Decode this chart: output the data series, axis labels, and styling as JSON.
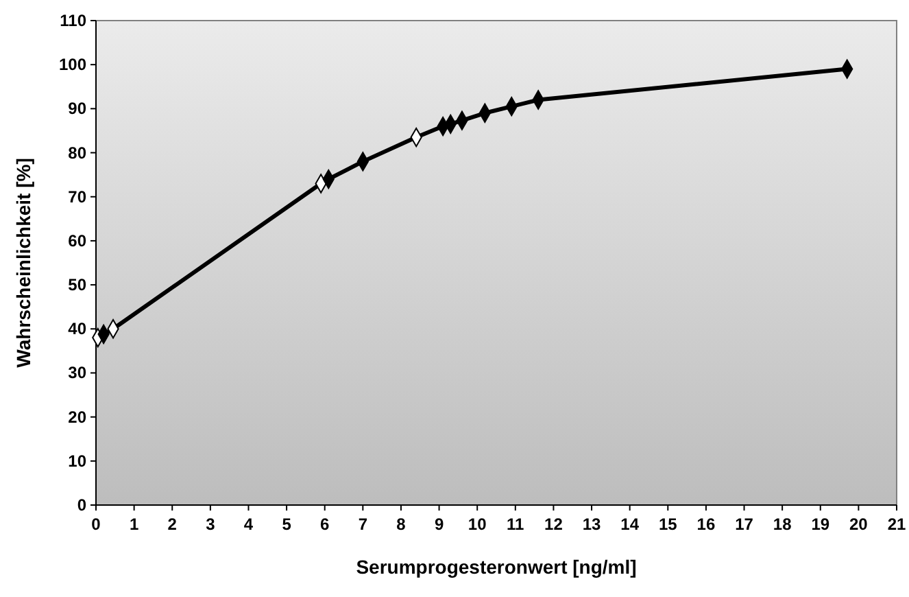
{
  "chart_data": {
    "type": "line",
    "xlabel": "Serumprogesteronwert [ng/ml]",
    "ylabel": "Wahrscheinlichkeit [%]",
    "x": [
      0.05,
      0.2,
      0.45,
      5.9,
      6.1,
      7.0,
      8.4,
      9.1,
      9.3,
      9.6,
      10.2,
      10.9,
      11.6,
      19.7
    ],
    "series": [
      {
        "color": "#000000",
        "values": [
          38,
          38.8,
          40,
          73,
          74,
          78,
          83.5,
          86,
          86.5,
          87.3,
          89,
          90.5,
          92,
          99
        ],
        "colors": [
          "#ffffff",
          "#000000",
          "#ffffff",
          "#ffffff",
          "#000000",
          "#000000",
          "#ffffff",
          "#000000",
          "#000000",
          "#000000",
          "#000000",
          "#000000",
          "#000000",
          "#000000"
        ]
      }
    ],
    "xlim": [
      0,
      21
    ],
    "xticks": [
      0,
      1,
      2,
      3,
      4,
      5,
      6,
      7,
      8,
      9,
      10,
      11,
      12,
      13,
      14,
      15,
      16,
      17,
      18,
      19,
      20,
      21
    ],
    "ylim": [
      0,
      110
    ],
    "yticks": [
      0,
      10,
      20,
      30,
      40,
      50,
      60,
      70,
      80,
      90,
      100,
      110
    ],
    "grid": false,
    "marker": "diamond",
    "line_style": "solid"
  }
}
